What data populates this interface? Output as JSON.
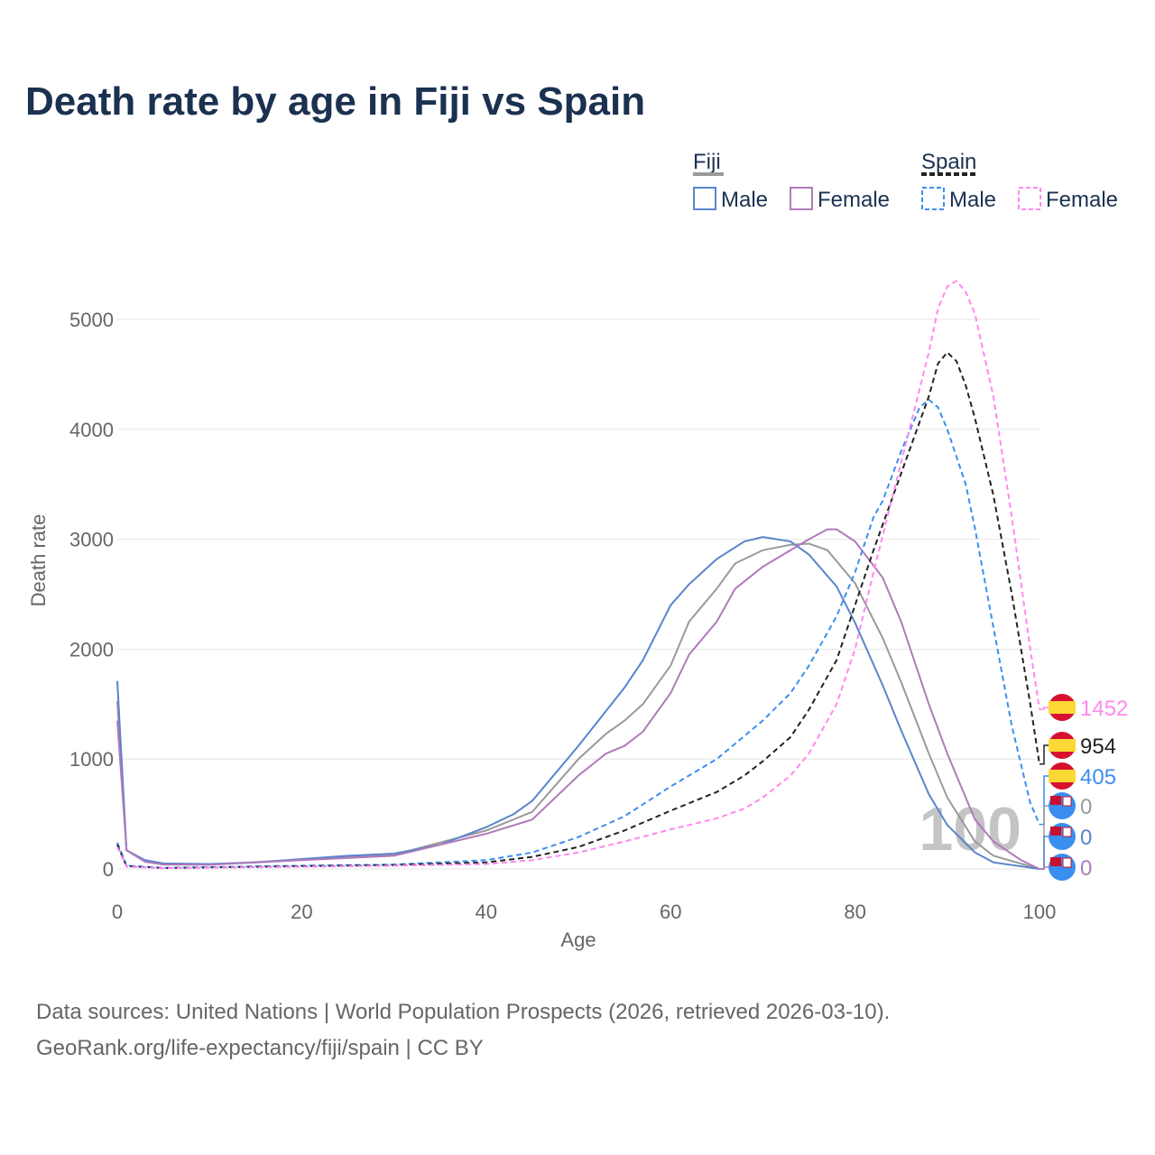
{
  "title": "Death rate by age in Fiji vs Spain",
  "sources": [
    "Data sources: United Nations | World Population Prospects (2026, retrieved 2026-03-10).",
    "GeoRank.org/life-expectancy/fiji/spain | CC BY"
  ],
  "watermark": "100",
  "legend": {
    "groups": [
      {
        "name": "Fiji",
        "items": [
          "Male",
          "Female"
        ]
      },
      {
        "name": "Spain",
        "items": [
          "Male",
          "Female"
        ]
      }
    ]
  },
  "chart_data": {
    "type": "line",
    "title": "Death rate by age in Fiji vs Spain",
    "xlabel": "Age",
    "ylabel": "Death rate",
    "xlim": [
      0,
      100
    ],
    "ylim": [
      0,
      5000
    ],
    "xticks": [
      "0",
      "20",
      "40",
      "60",
      "80",
      "100"
    ],
    "yticks": [
      "0",
      "1000",
      "2000",
      "3000",
      "4000",
      "5000"
    ],
    "grid": true,
    "legend_placement": "top-right",
    "series": [
      {
        "name": "Fiji Total",
        "color": "#9a9a9a",
        "dash": false,
        "flag": "fiji",
        "end_label": "0",
        "x": [
          0,
          1,
          3,
          5,
          10,
          20,
          30,
          40,
          45,
          50,
          53,
          55,
          57,
          60,
          62,
          65,
          67,
          70,
          73,
          75,
          77,
          80,
          83,
          85,
          88,
          90,
          93,
          95,
          100
        ],
        "y": [
          1530,
          170,
          70,
          45,
          40,
          85,
          130,
          350,
          520,
          1000,
          1230,
          1350,
          1500,
          1850,
          2250,
          2550,
          2780,
          2900,
          2950,
          2960,
          2900,
          2600,
          2100,
          1700,
          1050,
          650,
          250,
          120,
          0
        ]
      },
      {
        "name": "Fiji Male",
        "color": "#5a84cc",
        "dash": false,
        "flag": "fiji",
        "end_label": "0",
        "x": [
          0,
          1,
          3,
          5,
          10,
          15,
          20,
          25,
          30,
          35,
          40,
          43,
          45,
          50,
          55,
          57,
          60,
          62,
          65,
          68,
          70,
          73,
          75,
          78,
          80,
          83,
          85,
          88,
          90,
          93,
          95,
          100
        ],
        "y": [
          1710,
          170,
          80,
          50,
          45,
          60,
          90,
          120,
          140,
          220,
          380,
          500,
          620,
          1120,
          1650,
          1900,
          2400,
          2590,
          2820,
          2980,
          3020,
          2980,
          2860,
          2570,
          2240,
          1670,
          1260,
          680,
          400,
          150,
          60,
          0
        ]
      },
      {
        "name": "Fiji Female",
        "color": "#b07aba",
        "dash": false,
        "flag": "fiji",
        "end_label": "0",
        "x": [
          0,
          1,
          3,
          5,
          10,
          20,
          30,
          40,
          45,
          50,
          53,
          55,
          57,
          60,
          62,
          65,
          67,
          70,
          73,
          75,
          77,
          78,
          80,
          83,
          85,
          88,
          90,
          93,
          95,
          98,
          100
        ],
        "y": [
          1350,
          170,
          65,
          40,
          38,
          80,
          120,
          320,
          450,
          850,
          1050,
          1120,
          1250,
          1600,
          1950,
          2250,
          2550,
          2750,
          2900,
          3000,
          3090,
          3090,
          2980,
          2650,
          2250,
          1500,
          1050,
          450,
          250,
          80,
          0
        ]
      },
      {
        "name": "Spain Male",
        "color": "#3d8ef0",
        "dash": true,
        "flag": "spain",
        "end_label": "405",
        "x": [
          0,
          1,
          5,
          20,
          30,
          40,
          45,
          50,
          55,
          60,
          65,
          70,
          73,
          75,
          78,
          80,
          82,
          83,
          85,
          87,
          88,
          89,
          90,
          92,
          93,
          95,
          97,
          99,
          100
        ],
        "y": [
          240,
          30,
          10,
          30,
          40,
          80,
          150,
          290,
          480,
          750,
          1000,
          1350,
          1600,
          1850,
          2300,
          2700,
          3200,
          3350,
          3800,
          4200,
          4270,
          4200,
          4000,
          3500,
          3100,
          2200,
          1300,
          600,
          405
        ]
      },
      {
        "name": "Spain Total",
        "color": "#222222",
        "dash": true,
        "flag": "spain",
        "end_label": "954",
        "x": [
          0,
          1,
          5,
          20,
          30,
          40,
          45,
          50,
          55,
          60,
          65,
          68,
          70,
          73,
          75,
          78,
          80,
          82,
          85,
          88,
          89,
          90,
          91,
          92,
          93,
          95,
          97,
          99,
          100
        ],
        "y": [
          220,
          25,
          8,
          25,
          35,
          60,
          110,
          200,
          350,
          530,
          700,
          850,
          980,
          1200,
          1450,
          1900,
          2400,
          2900,
          3600,
          4300,
          4600,
          4700,
          4620,
          4400,
          4100,
          3400,
          2500,
          1500,
          954
        ]
      },
      {
        "name": "Spain Female",
        "color": "#ff88f0",
        "dash": true,
        "flag": "spain",
        "end_label": "1452",
        "x": [
          0,
          1,
          5,
          20,
          30,
          40,
          45,
          50,
          55,
          60,
          65,
          68,
          70,
          73,
          75,
          78,
          80,
          82,
          85,
          88,
          89,
          90,
          91,
          92,
          93,
          95,
          97,
          99,
          100
        ],
        "y": [
          200,
          20,
          7,
          20,
          30,
          45,
          80,
          150,
          250,
          360,
          460,
          550,
          650,
          850,
          1050,
          1500,
          2000,
          2700,
          3700,
          4700,
          5100,
          5300,
          5350,
          5250,
          5050,
          4300,
          3200,
          2000,
          1452
        ]
      }
    ]
  }
}
